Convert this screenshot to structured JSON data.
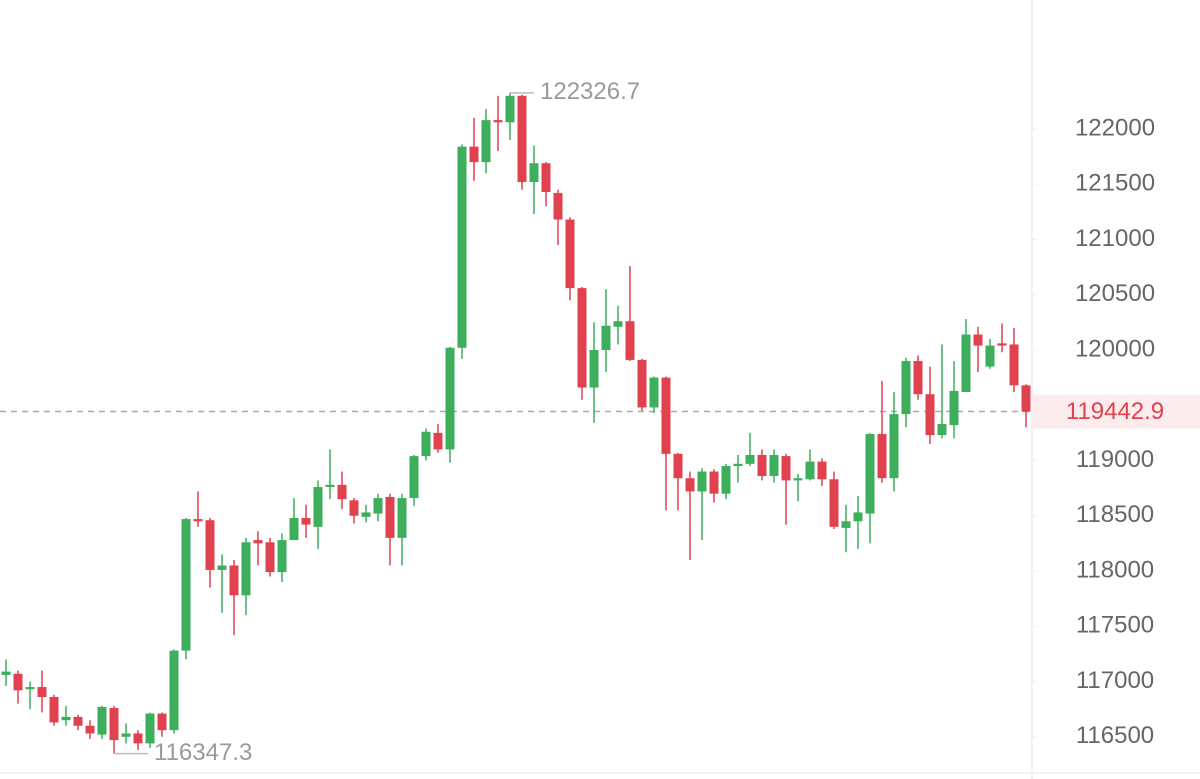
{
  "chart_data": {
    "type": "candlestick",
    "up_color": "#3dae5c",
    "down_color": "#e0414e",
    "ylim": [
      116118,
      123167
    ],
    "yticks": [
      116500,
      117000,
      117500,
      118000,
      118500,
      119000,
      119500,
      120000,
      120500,
      121000,
      121500,
      122000
    ],
    "grid": false,
    "max_label": 122326.7,
    "min_label": 116347.3,
    "last_price": 119442.9,
    "open": [
      117060,
      117070,
      116930,
      116950,
      116860,
      116650,
      116680,
      116600,
      116520,
      116760,
      116500,
      116530,
      116440,
      116710,
      116560,
      117280,
      118470,
      118460,
      118010,
      118050,
      117780,
      118280,
      118260,
      117990,
      118280,
      118480,
      118400,
      118760,
      118780,
      118640,
      118490,
      118520,
      118670,
      118300,
      118660,
      119040,
      119250,
      119100,
      120020,
      121840,
      121700,
      122080,
      122060,
      122300,
      121520,
      121690,
      121420,
      121180,
      120560,
      119660,
      120000,
      120210,
      120260,
      119910,
      119480,
      119750,
      119060,
      118840,
      118720,
      118900,
      118700,
      118950,
      118970,
      119050,
      118860,
      119040,
      118820,
      118830,
      118990,
      118830,
      118390,
      118450,
      118520,
      119240,
      118840,
      119420,
      119900,
      119600,
      119230,
      119320,
      119620,
      120140,
      119850,
      120060,
      120050,
      119680
    ],
    "high": [
      117200,
      117100,
      117000,
      117100,
      116880,
      116780,
      116700,
      116650,
      116780,
      116780,
      116620,
      116560,
      116720,
      116720,
      117290,
      118480,
      118720,
      118480,
      118150,
      118100,
      118300,
      118360,
      118300,
      118340,
      118660,
      118600,
      118820,
      119100,
      118900,
      118660,
      118600,
      118700,
      118700,
      118700,
      119050,
      119290,
      119330,
      120030,
      121860,
      122100,
      122180,
      122300,
      122326.7,
      122310,
      121850,
      121700,
      121450,
      121200,
      120570,
      120250,
      120550,
      120400,
      120760,
      119920,
      119760,
      119760,
      119070,
      118900,
      118930,
      118920,
      118970,
      119050,
      119250,
      119100,
      119100,
      119060,
      118880,
      119100,
      119020,
      118900,
      118600,
      118680,
      119250,
      119720,
      119620,
      119930,
      119950,
      119850,
      120050,
      119900,
      120280,
      120210,
      120100,
      120240,
      120200,
      119690
    ],
    "low": [
      116960,
      116800,
      116750,
      116720,
      116600,
      116600,
      116560,
      116480,
      116480,
      116347.3,
      116440,
      116380,
      116400,
      116500,
      116530,
      117200,
      118400,
      117850,
      117620,
      117420,
      117600,
      118050,
      117950,
      117900,
      118300,
      118300,
      118200,
      118650,
      118560,
      118430,
      118440,
      118450,
      118050,
      118050,
      118590,
      119000,
      119070,
      118980,
      119920,
      121530,
      121600,
      121800,
      121900,
      121450,
      121230,
      121300,
      120950,
      120450,
      119550,
      119340,
      119800,
      120050,
      119900,
      119450,
      119430,
      118550,
      118550,
      118100,
      118280,
      118620,
      118650,
      118800,
      118950,
      118820,
      118800,
      118420,
      118630,
      118820,
      118770,
      118380,
      118170,
      118200,
      118250,
      118800,
      118720,
      119300,
      119550,
      119150,
      119200,
      119200,
      119620,
      119800,
      119830,
      119980,
      119620,
      119300
    ],
    "close": [
      117090,
      116920,
      116950,
      116860,
      116630,
      116680,
      116600,
      116530,
      116770,
      116470,
      116530,
      116440,
      116710,
      116560,
      117280,
      118470,
      118450,
      118010,
      118050,
      117780,
      118260,
      118250,
      117990,
      118280,
      118480,
      118420,
      118760,
      118780,
      118650,
      118500,
      118530,
      118660,
      118300,
      118660,
      119040,
      119260,
      119100,
      120020,
      121840,
      121700,
      122080,
      122060,
      122300,
      121520,
      121690,
      121430,
      121180,
      120560,
      119660,
      120000,
      120220,
      120260,
      119910,
      119480,
      119750,
      119060,
      118840,
      118720,
      118900,
      118700,
      118950,
      118970,
      119050,
      118860,
      119050,
      118820,
      118840,
      118990,
      118830,
      118400,
      118450,
      118530,
      119240,
      118840,
      119420,
      119900,
      119600,
      119230,
      119330,
      119630,
      120140,
      120040,
      120040,
      120040,
      119680,
      119442.9
    ]
  }
}
